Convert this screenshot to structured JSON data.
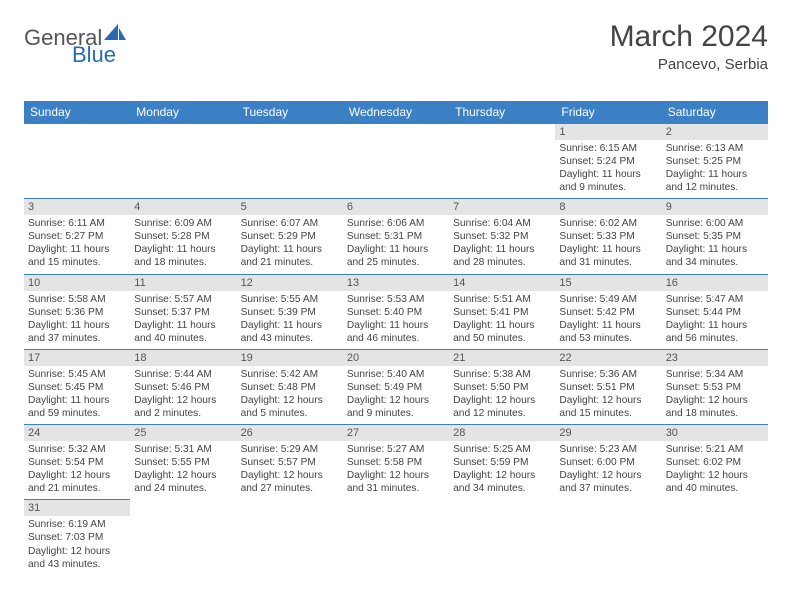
{
  "brand": {
    "general": "General",
    "blue": "Blue"
  },
  "title": "March 2024",
  "location": "Pancevo, Serbia",
  "dayHeaders": [
    "Sunday",
    "Monday",
    "Tuesday",
    "Wednesday",
    "Thursday",
    "Friday",
    "Saturday"
  ],
  "colors": {
    "header_bg": "#3b7fc4",
    "header_fg": "#ffffff",
    "daynum_bg": "#e4e4e4",
    "border": "#3b7fc4",
    "brand_blue": "#2a6ab0",
    "text": "#444444",
    "background": "#ffffff"
  },
  "weeks": [
    [
      null,
      null,
      null,
      null,
      null,
      {
        "n": "1",
        "sunrise": "Sunrise: 6:15 AM",
        "sunset": "Sunset: 5:24 PM",
        "day1": "Daylight: 11 hours",
        "day2": "and 9 minutes."
      },
      {
        "n": "2",
        "sunrise": "Sunrise: 6:13 AM",
        "sunset": "Sunset: 5:25 PM",
        "day1": "Daylight: 11 hours",
        "day2": "and 12 minutes."
      }
    ],
    [
      {
        "n": "3",
        "sunrise": "Sunrise: 6:11 AM",
        "sunset": "Sunset: 5:27 PM",
        "day1": "Daylight: 11 hours",
        "day2": "and 15 minutes."
      },
      {
        "n": "4",
        "sunrise": "Sunrise: 6:09 AM",
        "sunset": "Sunset: 5:28 PM",
        "day1": "Daylight: 11 hours",
        "day2": "and 18 minutes."
      },
      {
        "n": "5",
        "sunrise": "Sunrise: 6:07 AM",
        "sunset": "Sunset: 5:29 PM",
        "day1": "Daylight: 11 hours",
        "day2": "and 21 minutes."
      },
      {
        "n": "6",
        "sunrise": "Sunrise: 6:06 AM",
        "sunset": "Sunset: 5:31 PM",
        "day1": "Daylight: 11 hours",
        "day2": "and 25 minutes."
      },
      {
        "n": "7",
        "sunrise": "Sunrise: 6:04 AM",
        "sunset": "Sunset: 5:32 PM",
        "day1": "Daylight: 11 hours",
        "day2": "and 28 minutes."
      },
      {
        "n": "8",
        "sunrise": "Sunrise: 6:02 AM",
        "sunset": "Sunset: 5:33 PM",
        "day1": "Daylight: 11 hours",
        "day2": "and 31 minutes."
      },
      {
        "n": "9",
        "sunrise": "Sunrise: 6:00 AM",
        "sunset": "Sunset: 5:35 PM",
        "day1": "Daylight: 11 hours",
        "day2": "and 34 minutes."
      }
    ],
    [
      {
        "n": "10",
        "sunrise": "Sunrise: 5:58 AM",
        "sunset": "Sunset: 5:36 PM",
        "day1": "Daylight: 11 hours",
        "day2": "and 37 minutes."
      },
      {
        "n": "11",
        "sunrise": "Sunrise: 5:57 AM",
        "sunset": "Sunset: 5:37 PM",
        "day1": "Daylight: 11 hours",
        "day2": "and 40 minutes."
      },
      {
        "n": "12",
        "sunrise": "Sunrise: 5:55 AM",
        "sunset": "Sunset: 5:39 PM",
        "day1": "Daylight: 11 hours",
        "day2": "and 43 minutes."
      },
      {
        "n": "13",
        "sunrise": "Sunrise: 5:53 AM",
        "sunset": "Sunset: 5:40 PM",
        "day1": "Daylight: 11 hours",
        "day2": "and 46 minutes."
      },
      {
        "n": "14",
        "sunrise": "Sunrise: 5:51 AM",
        "sunset": "Sunset: 5:41 PM",
        "day1": "Daylight: 11 hours",
        "day2": "and 50 minutes."
      },
      {
        "n": "15",
        "sunrise": "Sunrise: 5:49 AM",
        "sunset": "Sunset: 5:42 PM",
        "day1": "Daylight: 11 hours",
        "day2": "and 53 minutes."
      },
      {
        "n": "16",
        "sunrise": "Sunrise: 5:47 AM",
        "sunset": "Sunset: 5:44 PM",
        "day1": "Daylight: 11 hours",
        "day2": "and 56 minutes."
      }
    ],
    [
      {
        "n": "17",
        "sunrise": "Sunrise: 5:45 AM",
        "sunset": "Sunset: 5:45 PM",
        "day1": "Daylight: 11 hours",
        "day2": "and 59 minutes."
      },
      {
        "n": "18",
        "sunrise": "Sunrise: 5:44 AM",
        "sunset": "Sunset: 5:46 PM",
        "day1": "Daylight: 12 hours",
        "day2": "and 2 minutes."
      },
      {
        "n": "19",
        "sunrise": "Sunrise: 5:42 AM",
        "sunset": "Sunset: 5:48 PM",
        "day1": "Daylight: 12 hours",
        "day2": "and 5 minutes."
      },
      {
        "n": "20",
        "sunrise": "Sunrise: 5:40 AM",
        "sunset": "Sunset: 5:49 PM",
        "day1": "Daylight: 12 hours",
        "day2": "and 9 minutes."
      },
      {
        "n": "21",
        "sunrise": "Sunrise: 5:38 AM",
        "sunset": "Sunset: 5:50 PM",
        "day1": "Daylight: 12 hours",
        "day2": "and 12 minutes."
      },
      {
        "n": "22",
        "sunrise": "Sunrise: 5:36 AM",
        "sunset": "Sunset: 5:51 PM",
        "day1": "Daylight: 12 hours",
        "day2": "and 15 minutes."
      },
      {
        "n": "23",
        "sunrise": "Sunrise: 5:34 AM",
        "sunset": "Sunset: 5:53 PM",
        "day1": "Daylight: 12 hours",
        "day2": "and 18 minutes."
      }
    ],
    [
      {
        "n": "24",
        "sunrise": "Sunrise: 5:32 AM",
        "sunset": "Sunset: 5:54 PM",
        "day1": "Daylight: 12 hours",
        "day2": "and 21 minutes."
      },
      {
        "n": "25",
        "sunrise": "Sunrise: 5:31 AM",
        "sunset": "Sunset: 5:55 PM",
        "day1": "Daylight: 12 hours",
        "day2": "and 24 minutes."
      },
      {
        "n": "26",
        "sunrise": "Sunrise: 5:29 AM",
        "sunset": "Sunset: 5:57 PM",
        "day1": "Daylight: 12 hours",
        "day2": "and 27 minutes."
      },
      {
        "n": "27",
        "sunrise": "Sunrise: 5:27 AM",
        "sunset": "Sunset: 5:58 PM",
        "day1": "Daylight: 12 hours",
        "day2": "and 31 minutes."
      },
      {
        "n": "28",
        "sunrise": "Sunrise: 5:25 AM",
        "sunset": "Sunset: 5:59 PM",
        "day1": "Daylight: 12 hours",
        "day2": "and 34 minutes."
      },
      {
        "n": "29",
        "sunrise": "Sunrise: 5:23 AM",
        "sunset": "Sunset: 6:00 PM",
        "day1": "Daylight: 12 hours",
        "day2": "and 37 minutes."
      },
      {
        "n": "30",
        "sunrise": "Sunrise: 5:21 AM",
        "sunset": "Sunset: 6:02 PM",
        "day1": "Daylight: 12 hours",
        "day2": "and 40 minutes."
      }
    ],
    [
      {
        "n": "31",
        "sunrise": "Sunrise: 6:19 AM",
        "sunset": "Sunset: 7:03 PM",
        "day1": "Daylight: 12 hours",
        "day2": "and 43 minutes."
      },
      null,
      null,
      null,
      null,
      null,
      null
    ]
  ]
}
